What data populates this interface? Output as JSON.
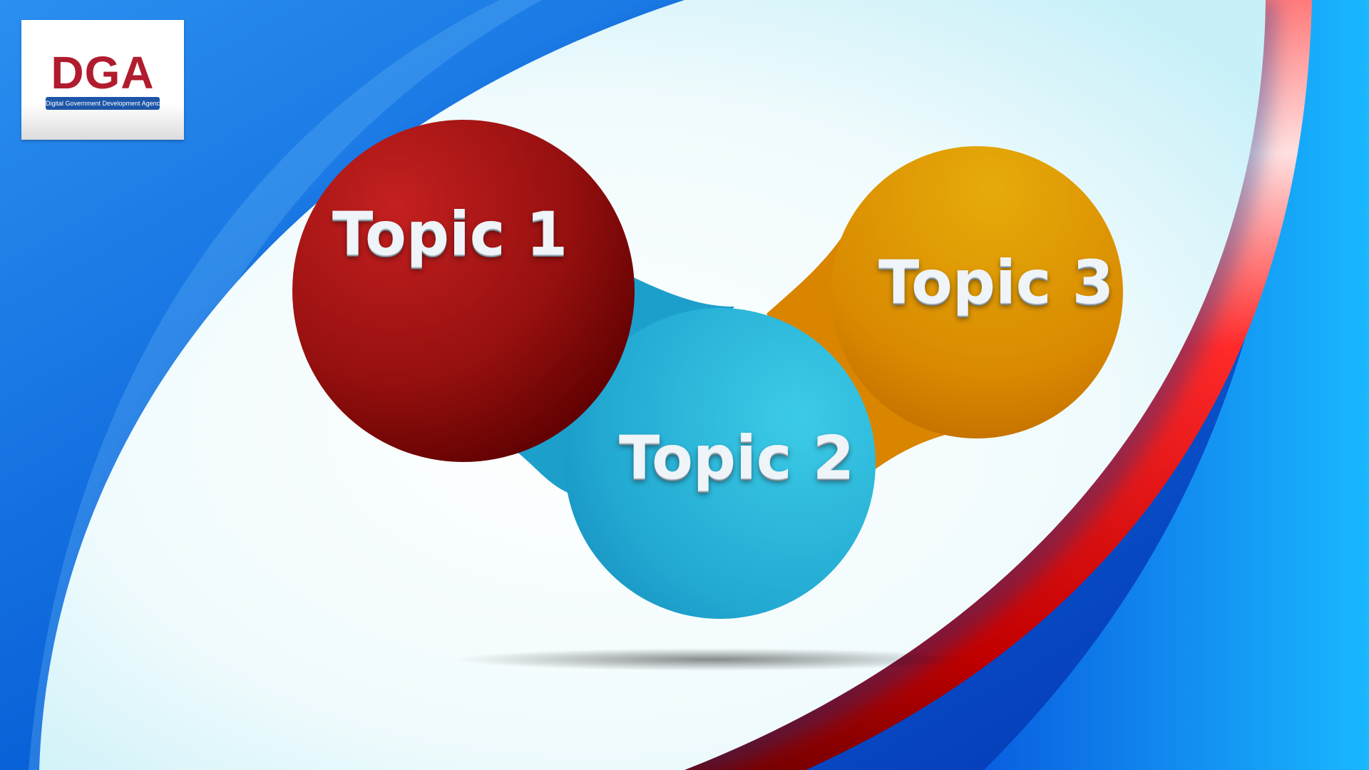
{
  "logo": {
    "wordmark": "DGA",
    "tagline": "Digital Government Development Agency",
    "icon": "dga-logo"
  },
  "topics": [
    {
      "label": "Topic 1",
      "color": "#9a1212"
    },
    {
      "label": "Topic 2",
      "color": "#2bb6d8"
    },
    {
      "label": "Topic 3",
      "color": "#e0960a"
    }
  ],
  "colors": {
    "background_blue": "#0a6fe0",
    "swoosh_red": "#e8101a",
    "logo_red": "#b01c2e",
    "logo_band": "#1d56a8"
  }
}
